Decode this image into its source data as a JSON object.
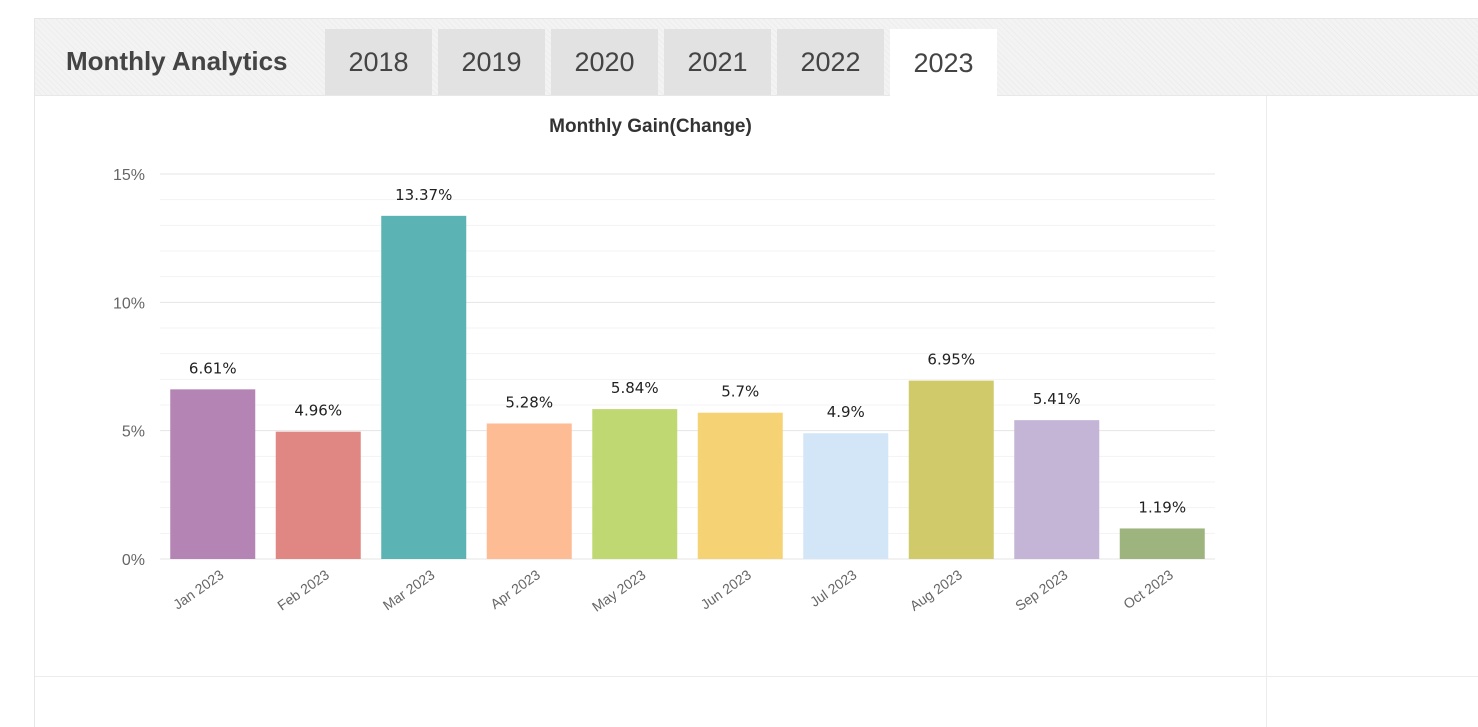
{
  "tabs": {
    "title": "Monthly Analytics",
    "years": [
      "2018",
      "2019",
      "2020",
      "2021",
      "2022",
      "2023"
    ],
    "active": "2023"
  },
  "chart_data": {
    "type": "bar",
    "title": "Monthly Gain(Change)",
    "categories": [
      "Jan 2023",
      "Feb 2023",
      "Mar 2023",
      "Apr 2023",
      "May 2023",
      "Jun 2023",
      "Jul 2023",
      "Aug 2023",
      "Sep 2023",
      "Oct 2023"
    ],
    "values": [
      6.61,
      4.96,
      13.37,
      5.28,
      5.84,
      5.7,
      4.9,
      6.95,
      5.41,
      1.19
    ],
    "data_labels": [
      "6.61%",
      "4.96%",
      "13.37%",
      "5.28%",
      "5.84%",
      "5.7%",
      "4.9%",
      "6.95%",
      "5.41%",
      "1.19%"
    ],
    "colors": [
      "#b384b4",
      "#e08784",
      "#5bb4b3",
      "#fdbc94",
      "#bfd872",
      "#f5d375",
      "#d3e6f8",
      "#d0ca6b",
      "#c4b5d6",
      "#9db47e"
    ],
    "yticks": [
      0,
      5,
      10,
      15
    ],
    "ytick_labels": [
      "0%",
      "5%",
      "10%",
      "15%"
    ],
    "ylim": [
      0,
      15
    ],
    "xlabel": "",
    "ylabel": "",
    "grid": true,
    "legend": "none"
  }
}
